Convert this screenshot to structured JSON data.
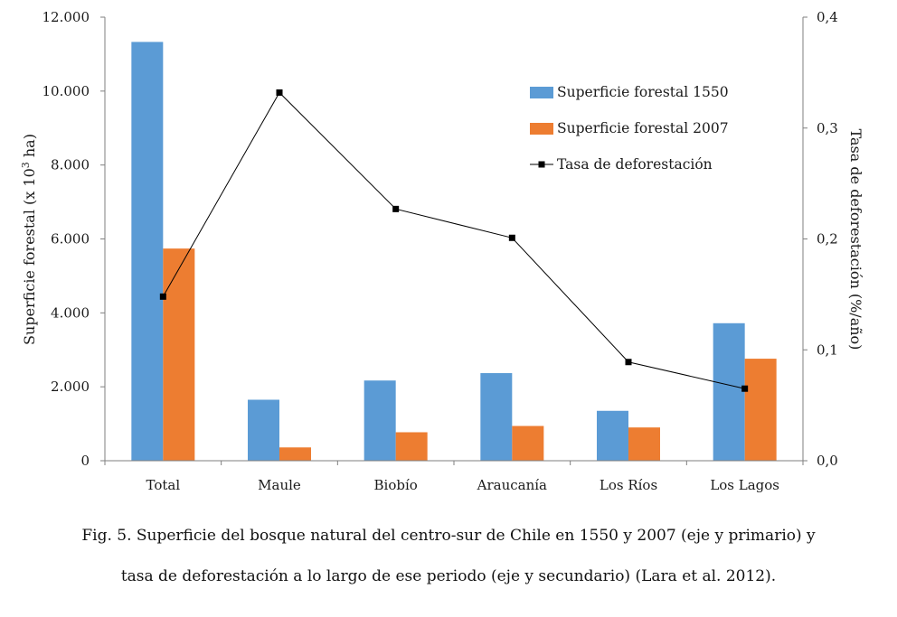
{
  "chart_data": {
    "type": "bar+line",
    "categories": [
      "Total",
      "Maule",
      "Biobío",
      "Araucanía",
      "Los Ríos",
      "Los Lagos"
    ],
    "series": [
      {
        "name": "Superficie forestal 1550",
        "kind": "bar",
        "axis": "primary",
        "color": "#5b9bd5",
        "values": [
          11330,
          1650,
          2170,
          2370,
          1350,
          3720
        ]
      },
      {
        "name": "Superficie forestal 2007",
        "kind": "bar",
        "axis": "primary",
        "color": "#ed7d31",
        "values": [
          5740,
          360,
          770,
          940,
          900,
          2760
        ]
      },
      {
        "name": "Tasa de deforestación",
        "kind": "line",
        "axis": "secondary",
        "color": "#000000",
        "values": [
          0.148,
          0.332,
          0.227,
          0.201,
          0.089,
          0.065
        ]
      }
    ],
    "ylabel": "Superficie forestal (x 10",
    "ylabel_sup": "3",
    "ylabel_tail": " ha)",
    "y2label": "Tasa de deforestación  (%/año)",
    "ylim": [
      0,
      12000
    ],
    "y2lim": [
      0,
      0.4
    ],
    "yticks": [
      "0",
      "2.000",
      "4.000",
      "6.000",
      "8.000",
      "10.000",
      "12.000"
    ],
    "y2ticks": [
      "0,0",
      "0,1",
      "0,2",
      "0,3",
      "0,4"
    ],
    "legend_position": "top-right",
    "grid": false
  },
  "caption": {
    "line1": "Fig. 5. Superficie del bosque natural del centro-sur de Chile en 1550 y 2007 (eje y  primario) y",
    "line2": "tasa de deforestación a lo largo de ese periodo (eje y secundario) (Lara et al. 2012)."
  }
}
